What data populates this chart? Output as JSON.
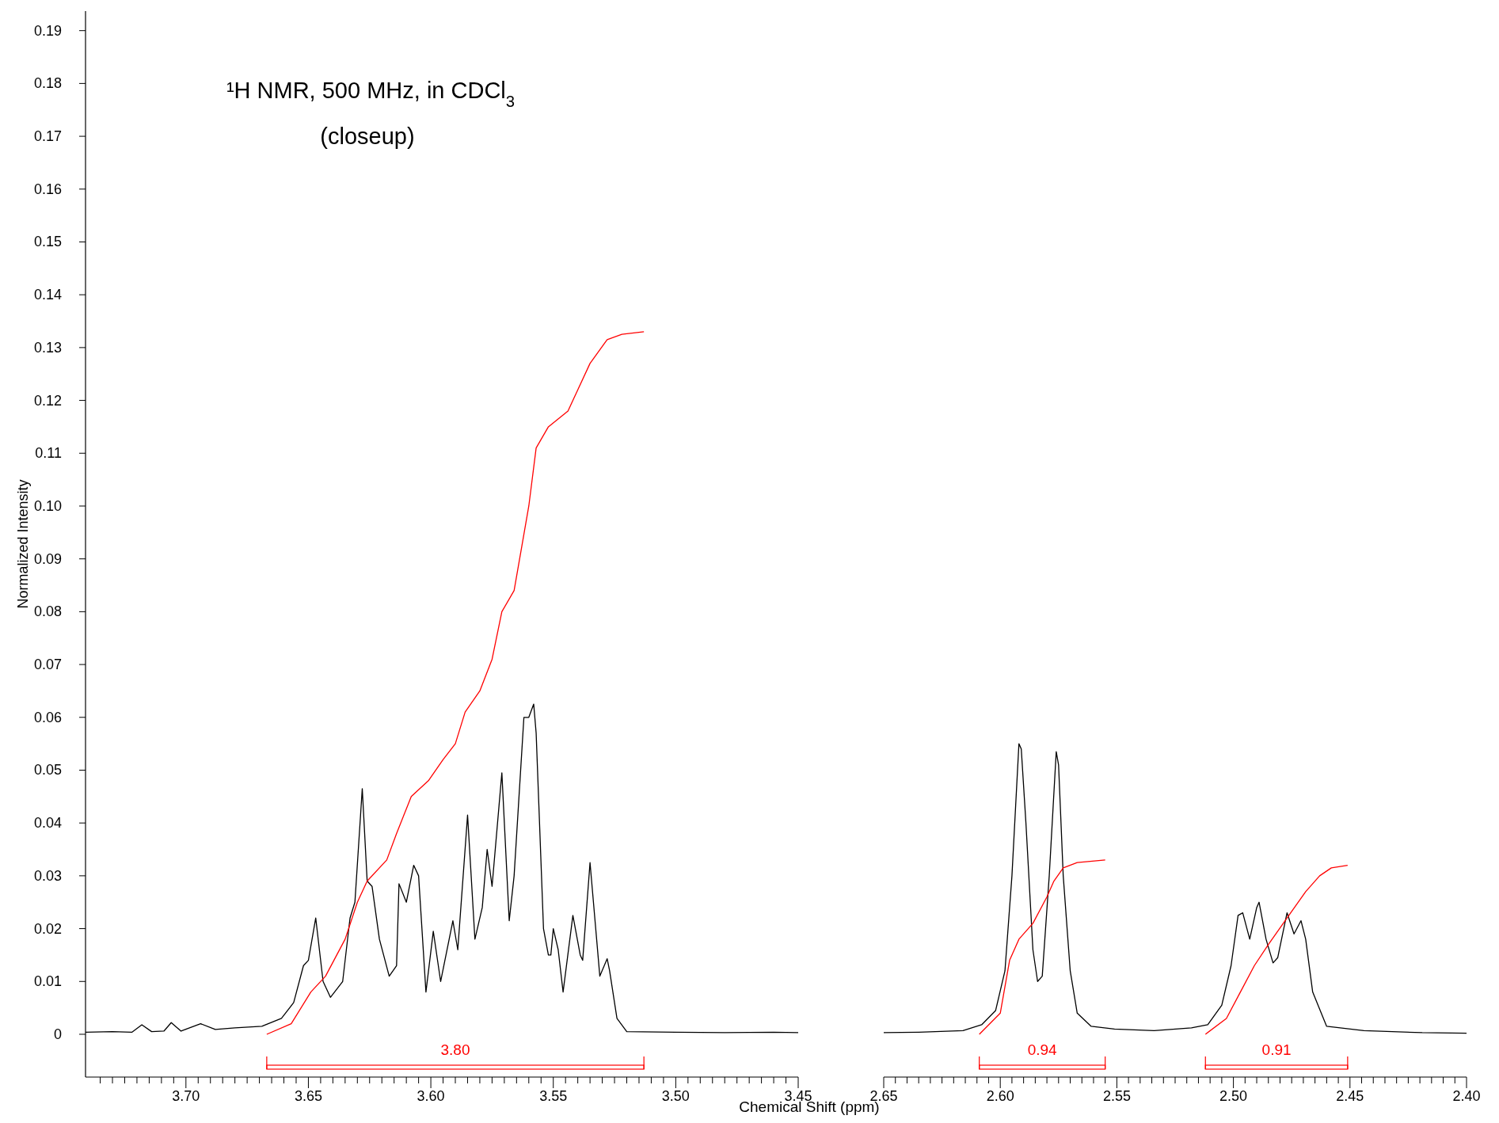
{
  "chart_data": [
    {
      "type": "line",
      "title": "¹H NMR, 500 MHz, in CDCl$_{3}$",
      "subtitle": "(closeup)",
      "ylabel": "Normalized Intensity",
      "xlim": [
        3.741,
        3.45
      ],
      "ylim": [
        -0.0081,
        0.1937
      ],
      "xticks": [
        {
          "value": 3.735,
          "label": null
        },
        {
          "value": 3.73,
          "label": null
        },
        {
          "value": 3.725,
          "label": null
        },
        {
          "value": 3.72,
          "label": null
        },
        {
          "value": 3.715,
          "label": null
        },
        {
          "value": 3.71,
          "label": null
        },
        {
          "value": 3.705,
          "label": null
        },
        {
          "value": 3.7,
          "label": "3.70"
        },
        {
          "value": 3.695,
          "label": null
        },
        {
          "value": 3.69,
          "label": null
        },
        {
          "value": 3.685,
          "label": null
        },
        {
          "value": 3.68,
          "label": null
        },
        {
          "value": 3.675,
          "label": null
        },
        {
          "value": 3.67,
          "label": null
        },
        {
          "value": 3.665,
          "label": null
        },
        {
          "value": 3.66,
          "label": null
        },
        {
          "value": 3.655,
          "label": null
        },
        {
          "value": 3.65,
          "label": "3.65"
        },
        {
          "value": 3.645,
          "label": null
        },
        {
          "value": 3.64,
          "label": null
        },
        {
          "value": 3.635,
          "label": null
        },
        {
          "value": 3.63,
          "label": null
        },
        {
          "value": 3.625,
          "label": null
        },
        {
          "value": 3.62,
          "label": null
        },
        {
          "value": 3.615,
          "label": null
        },
        {
          "value": 3.61,
          "label": null
        },
        {
          "value": 3.605,
          "label": null
        },
        {
          "value": 3.6,
          "label": "3.60"
        },
        {
          "value": 3.595,
          "label": null
        },
        {
          "value": 3.59,
          "label": null
        },
        {
          "value": 3.585,
          "label": null
        },
        {
          "value": 3.58,
          "label": null
        },
        {
          "value": 3.575,
          "label": null
        },
        {
          "value": 3.57,
          "label": null
        },
        {
          "value": 3.565,
          "label": null
        },
        {
          "value": 3.56,
          "label": null
        },
        {
          "value": 3.555,
          "label": null
        },
        {
          "value": 3.55,
          "label": "3.55"
        },
        {
          "value": 3.545,
          "label": null
        },
        {
          "value": 3.54,
          "label": null
        },
        {
          "value": 3.535,
          "label": null
        },
        {
          "value": 3.53,
          "label": null
        },
        {
          "value": 3.525,
          "label": null
        },
        {
          "value": 3.52,
          "label": null
        },
        {
          "value": 3.515,
          "label": null
        },
        {
          "value": 3.51,
          "label": null
        },
        {
          "value": 3.505,
          "label": null
        },
        {
          "value": 3.5,
          "label": "3.50"
        },
        {
          "value": 3.495,
          "label": null
        },
        {
          "value": 3.49,
          "label": null
        },
        {
          "value": 3.485,
          "label": null
        },
        {
          "value": 3.48,
          "label": null
        },
        {
          "value": 3.475,
          "label": null
        },
        {
          "value": 3.47,
          "label": null
        },
        {
          "value": 3.465,
          "label": null
        },
        {
          "value": 3.46,
          "label": null
        },
        {
          "value": 3.455,
          "label": null
        },
        {
          "value": 3.45,
          "label": "3.45"
        }
      ],
      "yticks": [
        0,
        {
          "value": 0.01,
          "label": "0.01"
        },
        {
          "value": 0.02,
          "label": "0.02"
        },
        {
          "value": 0.03,
          "label": "0.03"
        },
        {
          "value": 0.04,
          "label": "0.04"
        },
        {
          "value": 0.05,
          "label": "0.05"
        },
        {
          "value": 0.06,
          "label": "0.06"
        },
        {
          "value": 0.07,
          "label": "0.07"
        },
        {
          "value": 0.08,
          "label": "0.08"
        },
        {
          "value": 0.09,
          "label": "0.09"
        },
        {
          "value": 0.1,
          "label": "0.10"
        },
        {
          "value": 0.11,
          "label": "0.11"
        },
        {
          "value": 0.12,
          "label": "0.12"
        },
        {
          "value": 0.13,
          "label": "0.13"
        },
        {
          "value": 0.14,
          "label": "0.14"
        },
        {
          "value": 0.15,
          "label": "0.15"
        },
        {
          "value": 0.16,
          "label": "0.16"
        },
        {
          "value": 0.17,
          "label": "0.17"
        },
        {
          "value": 0.18,
          "label": "0.18"
        },
        {
          "value": 0.19,
          "label": "0.19"
        }
      ],
      "series": [
        {
          "color": "#000000",
          "x": [
            3.741,
            3.73,
            3.722,
            3.718,
            3.714,
            3.709,
            3.706,
            3.702,
            3.694,
            3.688,
            3.68,
            3.669,
            3.661,
            3.656,
            3.652,
            3.65,
            3.647,
            3.644,
            3.641,
            3.636,
            3.633,
            3.631,
            3.628,
            3.626,
            3.624,
            3.621,
            3.617,
            3.614,
            3.613,
            3.61,
            3.607,
            3.605,
            3.602,
            3.599,
            3.596,
            3.591,
            3.589,
            3.585,
            3.582,
            3.579,
            3.577,
            3.575,
            3.571,
            3.568,
            3.566,
            3.562,
            3.56,
            3.558,
            3.557,
            3.554,
            3.552,
            3.551,
            3.55,
            3.548,
            3.546,
            3.542,
            3.539,
            3.538,
            3.535,
            3.531,
            3.528,
            3.527,
            3.524,
            3.52,
            3.5,
            3.48,
            3.46,
            3.45
          ],
          "values": [
            0.0004,
            0.0005,
            0.0004,
            0.0018,
            0.0005,
            0.0006,
            0.0022,
            0.0006,
            0.002,
            0.0009,
            0.0012,
            0.0015,
            0.003,
            0.006,
            0.013,
            0.014,
            0.022,
            0.01,
            0.007,
            0.01,
            0.022,
            0.025,
            0.0465,
            0.029,
            0.028,
            0.018,
            0.011,
            0.013,
            0.0285,
            0.025,
            0.032,
            0.03,
            0.008,
            0.0195,
            0.01,
            0.0215,
            0.016,
            0.0415,
            0.018,
            0.024,
            0.035,
            0.028,
            0.0495,
            0.0215,
            0.03,
            0.06,
            0.06,
            0.0625,
            0.057,
            0.02,
            0.015,
            0.015,
            0.02,
            0.016,
            0.008,
            0.0225,
            0.015,
            0.014,
            0.0325,
            0.011,
            0.0143,
            0.012,
            0.003,
            0.0005,
            0.0004,
            0.0003,
            0.0004,
            0.0003
          ]
        },
        {
          "color": "#ff0000",
          "x": [
            3.667,
            3.657,
            3.649,
            3.643,
            3.635,
            3.63,
            3.626,
            3.618,
            3.614,
            3.608,
            3.601,
            3.595,
            3.59,
            3.586,
            3.58,
            3.575,
            3.571,
            3.566,
            3.563,
            3.56,
            3.557,
            3.552,
            3.544,
            3.54,
            3.535,
            3.528,
            3.522,
            3.513
          ],
          "values": [
            0,
            0.002,
            0.008,
            0.011,
            0.018,
            0.025,
            0.029,
            0.033,
            0.038,
            0.045,
            0.048,
            0.052,
            0.055,
            0.061,
            0.065,
            0.071,
            0.08,
            0.084,
            0.092,
            0.1,
            0.111,
            0.115,
            0.118,
            0.122,
            0.127,
            0.1315,
            0.1325,
            0.133
          ]
        }
      ],
      "annotations": [
        "3.80"
      ]
    },
    {
      "type": "line",
      "xlabel": "Chemical Shift (ppm)",
      "xlim": [
        2.65,
        2.4
      ],
      "ylim": [
        -0.0081,
        0.1937
      ],
      "tick_labels": "x",
      "xticks": [
        {
          "value": 2.65,
          "label": "2.65"
        },
        {
          "value": 2.645,
          "label": null
        },
        {
          "value": 2.64,
          "label": null
        },
        {
          "value": 2.635,
          "label": null
        },
        {
          "value": 2.63,
          "label": null
        },
        {
          "value": 2.625,
          "label": null
        },
        {
          "value": 2.62,
          "label": null
        },
        {
          "value": 2.615,
          "label": null
        },
        {
          "value": 2.61,
          "label": null
        },
        {
          "value": 2.605,
          "label": null
        },
        {
          "value": 2.6,
          "label": "2.60"
        },
        {
          "value": 2.595,
          "label": null
        },
        {
          "value": 2.59,
          "label": null
        },
        {
          "value": 2.585,
          "label": null
        },
        {
          "value": 2.58,
          "label": null
        },
        {
          "value": 2.575,
          "label": null
        },
        {
          "value": 2.57,
          "label": null
        },
        {
          "value": 2.565,
          "label": null
        },
        {
          "value": 2.56,
          "label": null
        },
        {
          "value": 2.555,
          "label": null
        },
        {
          "value": 2.55,
          "label": "2.55"
        },
        {
          "value": 2.545,
          "label": null
        },
        {
          "value": 2.54,
          "label": null
        },
        {
          "value": 2.535,
          "label": null
        },
        {
          "value": 2.53,
          "label": null
        },
        {
          "value": 2.525,
          "label": null
        },
        {
          "value": 2.52,
          "label": null
        },
        {
          "value": 2.515,
          "label": null
        },
        {
          "value": 2.51,
          "label": null
        },
        {
          "value": 2.505,
          "label": null
        },
        {
          "value": 2.5,
          "label": "2.50"
        },
        {
          "value": 2.495,
          "label": null
        },
        {
          "value": 2.49,
          "label": null
        },
        {
          "value": 2.485,
          "label": null
        },
        {
          "value": 2.48,
          "label": null
        },
        {
          "value": 2.475,
          "label": null
        },
        {
          "value": 2.47,
          "label": null
        },
        {
          "value": 2.465,
          "label": null
        },
        {
          "value": 2.46,
          "label": null
        },
        {
          "value": 2.455,
          "label": null
        },
        {
          "value": 2.45,
          "label": "2.45"
        },
        {
          "value": 2.445,
          "label": null
        },
        {
          "value": 2.44,
          "label": null
        },
        {
          "value": 2.435,
          "label": null
        },
        {
          "value": 2.43,
          "label": null
        },
        {
          "value": 2.425,
          "label": null
        },
        {
          "value": 2.42,
          "label": null
        },
        {
          "value": 2.415,
          "label": null
        },
        {
          "value": 2.41,
          "label": null
        },
        {
          "value": 2.405,
          "label": null
        },
        {
          "value": 2.4,
          "label": "2.40"
        }
      ],
      "series": [
        {
          "color": "#000000",
          "x": [
            2.65,
            2.635,
            2.616,
            2.608,
            2.602,
            2.598,
            2.595,
            2.592,
            2.591,
            2.589,
            2.586,
            2.584,
            2.582,
            2.579,
            2.576,
            2.575,
            2.573,
            2.57,
            2.567,
            2.561,
            2.551,
            2.534,
            2.518,
            2.511,
            2.505,
            2.501,
            2.498,
            2.496,
            2.493,
            2.49,
            2.489,
            2.486,
            2.483,
            2.481,
            2.477,
            2.474,
            2.471,
            2.469,
            2.466,
            2.46,
            2.444,
            2.419,
            2.4
          ],
          "values": [
            0.0003,
            0.0004,
            0.0007,
            0.0018,
            0.0045,
            0.012,
            0.03,
            0.055,
            0.054,
            0.04,
            0.016,
            0.01,
            0.011,
            0.03,
            0.0535,
            0.051,
            0.03,
            0.012,
            0.004,
            0.0015,
            0.001,
            0.0007,
            0.0012,
            0.0018,
            0.0055,
            0.013,
            0.0225,
            0.023,
            0.018,
            0.024,
            0.025,
            0.018,
            0.0135,
            0.0145,
            0.023,
            0.019,
            0.0215,
            0.018,
            0.008,
            0.0015,
            0.0007,
            0.0003,
            0.0002
          ]
        },
        {
          "color": "#ff0000",
          "x": [
            2.609,
            2.6,
            2.598,
            2.596,
            2.592,
            2.586,
            2.58,
            2.577,
            2.573,
            2.567,
            2.555
          ],
          "values": [
            0,
            0.004,
            0.009,
            0.014,
            0.018,
            0.021,
            0.026,
            0.029,
            0.0315,
            0.0325,
            0.033
          ]
        },
        {
          "color": "#ff0000",
          "x": [
            2.512,
            2.503,
            2.497,
            2.491,
            2.485,
            2.477,
            2.469,
            2.463,
            2.458,
            2.451
          ],
          "values": [
            0,
            0.003,
            0.008,
            0.013,
            0.017,
            0.022,
            0.027,
            0.03,
            0.0315,
            0.032
          ]
        }
      ],
      "annotations": [
        "0.94",
        "0.91"
      ]
    }
  ]
}
